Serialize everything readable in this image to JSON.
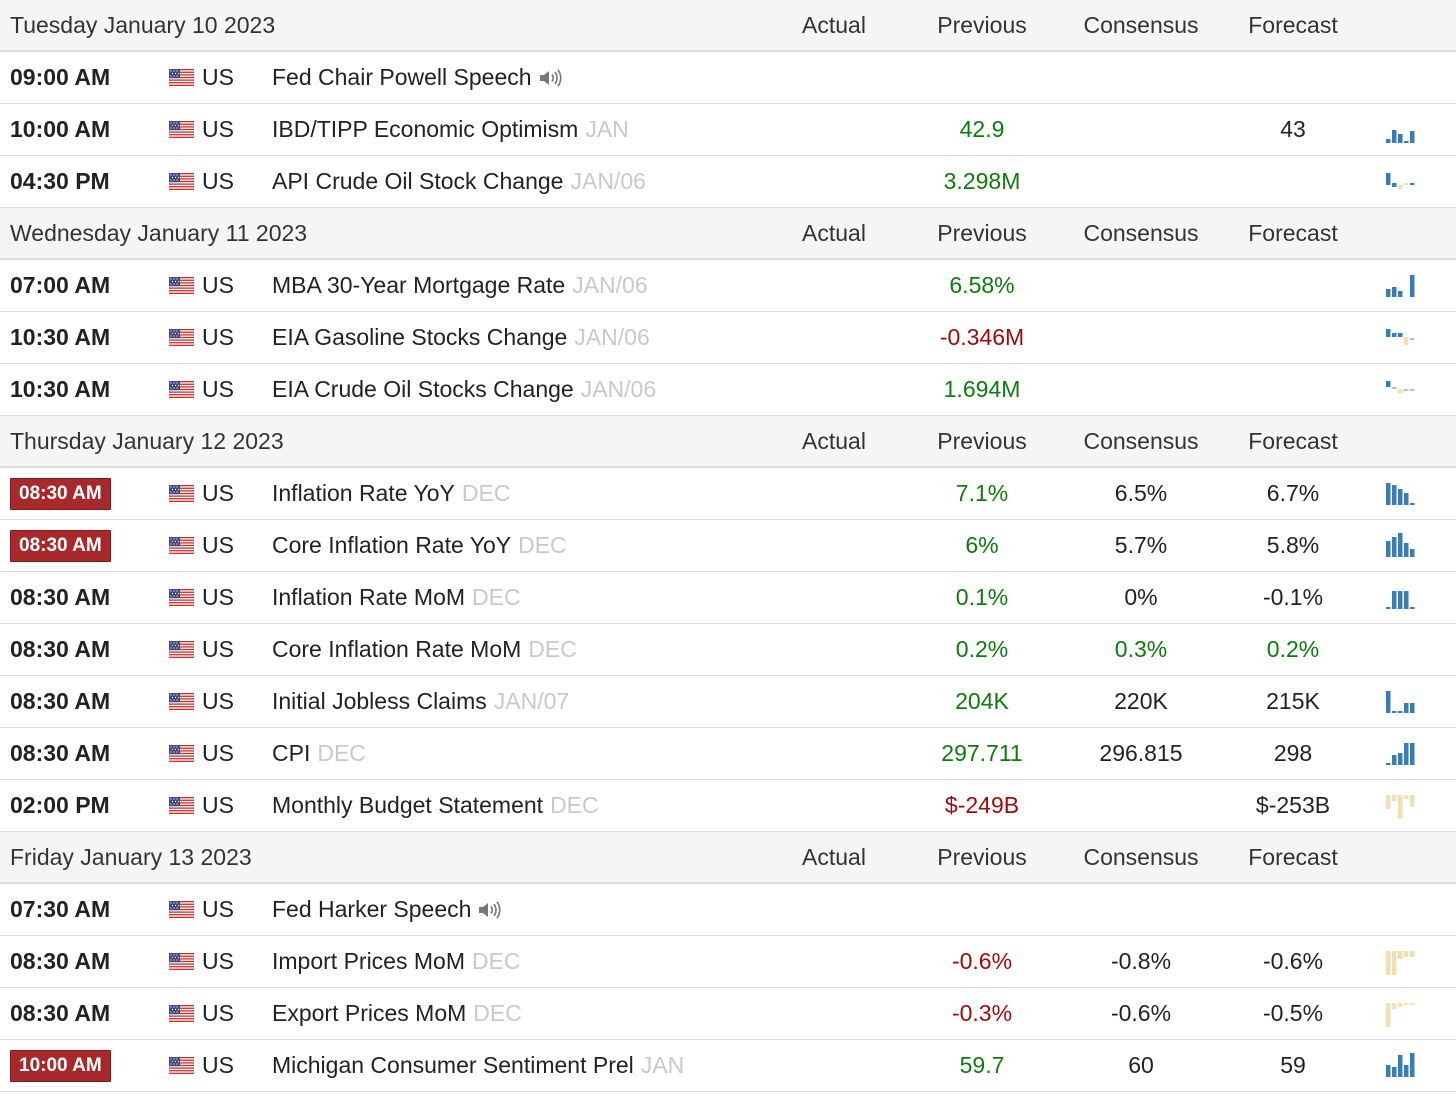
{
  "columns": {
    "actual": "Actual",
    "previous": "Previous",
    "consensus": "Consensus",
    "forecast": "Forecast"
  },
  "colors": {
    "positive": "#107a10",
    "negative": "#9e0a0a",
    "high_importance": "#a8292b",
    "spark_blue": "#3a7bb8",
    "spark_tan": "#f3dfb5"
  },
  "days": [
    {
      "date": "Tuesday January 10 2023",
      "events": [
        {
          "time": "09:00 AM",
          "important": false,
          "country": "US",
          "name": "Fed Chair Powell Speech",
          "period": "",
          "speaker_icon": true,
          "actual": "",
          "previous": "",
          "previous_tone": "green",
          "consensus": "",
          "consensus_tone": "black",
          "forecast": "",
          "forecast_tone": "black",
          "spark": ""
        },
        {
          "time": "10:00 AM",
          "important": false,
          "country": "US",
          "name": "IBD/TIPP Economic Optimism",
          "period": "JAN",
          "speaker_icon": false,
          "actual": "",
          "previous": "42.9",
          "previous_tone": "green",
          "consensus": "",
          "consensus_tone": "black",
          "forecast": "43",
          "forecast_tone": "black",
          "spark": "blue-a"
        },
        {
          "time": "04:30 PM",
          "important": false,
          "country": "US",
          "name": "API Crude Oil Stock Change",
          "period": "JAN/06",
          "speaker_icon": false,
          "actual": "",
          "previous": "3.298M",
          "previous_tone": "green",
          "consensus": "",
          "consensus_tone": "black",
          "forecast": "",
          "forecast_tone": "black",
          "spark": "mix-a"
        }
      ]
    },
    {
      "date": "Wednesday January 11 2023",
      "events": [
        {
          "time": "07:00 AM",
          "important": false,
          "country": "US",
          "name": "MBA 30-Year Mortgage Rate",
          "period": "JAN/06",
          "speaker_icon": false,
          "actual": "",
          "previous": "6.58%",
          "previous_tone": "green",
          "consensus": "",
          "consensus_tone": "black",
          "forecast": "",
          "forecast_tone": "black",
          "spark": "blue-b"
        },
        {
          "time": "10:30 AM",
          "important": false,
          "country": "US",
          "name": "EIA Gasoline Stocks Change",
          "period": "JAN/06",
          "speaker_icon": false,
          "actual": "",
          "previous": "-0.346M",
          "previous_tone": "red",
          "consensus": "",
          "consensus_tone": "black",
          "forecast": "",
          "forecast_tone": "black",
          "spark": "mix-b"
        },
        {
          "time": "10:30 AM",
          "important": false,
          "country": "US",
          "name": "EIA Crude Oil Stocks Change",
          "period": "JAN/06",
          "speaker_icon": false,
          "actual": "",
          "previous": "1.694M",
          "previous_tone": "green",
          "consensus": "",
          "consensus_tone": "black",
          "forecast": "",
          "forecast_tone": "black",
          "spark": "mix-c"
        }
      ]
    },
    {
      "date": "Thursday January 12 2023",
      "events": [
        {
          "time": "08:30 AM",
          "important": true,
          "country": "US",
          "name": "Inflation Rate YoY",
          "period": "DEC",
          "speaker_icon": false,
          "actual": "",
          "previous": "7.1%",
          "previous_tone": "green",
          "consensus": "6.5%",
          "consensus_tone": "black",
          "forecast": "6.7%",
          "forecast_tone": "black",
          "spark": "blue-c"
        },
        {
          "time": "08:30 AM",
          "important": true,
          "country": "US",
          "name": "Core Inflation Rate YoY",
          "period": "DEC",
          "speaker_icon": false,
          "actual": "",
          "previous": "6%",
          "previous_tone": "green",
          "consensus": "5.7%",
          "consensus_tone": "black",
          "forecast": "5.8%",
          "forecast_tone": "black",
          "spark": "blue-d"
        },
        {
          "time": "08:30 AM",
          "important": false,
          "country": "US",
          "name": "Inflation Rate MoM",
          "period": "DEC",
          "speaker_icon": false,
          "actual": "",
          "previous": "0.1%",
          "previous_tone": "green",
          "consensus": "0%",
          "consensus_tone": "black",
          "forecast": "-0.1%",
          "forecast_tone": "black",
          "spark": "blue-e"
        },
        {
          "time": "08:30 AM",
          "important": false,
          "country": "US",
          "name": "Core Inflation Rate MoM",
          "period": "DEC",
          "speaker_icon": false,
          "actual": "",
          "previous": "0.2%",
          "previous_tone": "green",
          "consensus": "0.3%",
          "consensus_tone": "green",
          "forecast": "0.2%",
          "forecast_tone": "green",
          "spark": ""
        },
        {
          "time": "08:30 AM",
          "important": false,
          "country": "US",
          "name": "Initial Jobless Claims",
          "period": "JAN/07",
          "speaker_icon": false,
          "actual": "",
          "previous": "204K",
          "previous_tone": "green",
          "consensus": "220K",
          "consensus_tone": "black",
          "forecast": "215K",
          "forecast_tone": "black",
          "spark": "blue-f"
        },
        {
          "time": "08:30 AM",
          "important": false,
          "country": "US",
          "name": "CPI",
          "period": "DEC",
          "speaker_icon": false,
          "actual": "",
          "previous": "297.711",
          "previous_tone": "green",
          "consensus": "296.815",
          "consensus_tone": "black",
          "forecast": "298",
          "forecast_tone": "black",
          "spark": "blue-g"
        },
        {
          "time": "02:00 PM",
          "important": false,
          "country": "US",
          "name": "Monthly Budget Statement",
          "period": "DEC",
          "speaker_icon": false,
          "actual": "",
          "previous": "$-249B",
          "previous_tone": "red",
          "consensus": "",
          "consensus_tone": "black",
          "forecast": "$-253B",
          "forecast_tone": "black",
          "spark": "tan-a"
        }
      ]
    },
    {
      "date": "Friday January 13 2023",
      "events": [
        {
          "time": "07:30 AM",
          "important": false,
          "country": "US",
          "name": "Fed Harker Speech",
          "period": "",
          "speaker_icon": true,
          "actual": "",
          "previous": "",
          "previous_tone": "green",
          "consensus": "",
          "consensus_tone": "black",
          "forecast": "",
          "forecast_tone": "black",
          "spark": ""
        },
        {
          "time": "08:30 AM",
          "important": false,
          "country": "US",
          "name": "Import Prices MoM",
          "period": "DEC",
          "speaker_icon": false,
          "actual": "",
          "previous": "-0.6%",
          "previous_tone": "red",
          "consensus": "-0.8%",
          "consensus_tone": "black",
          "forecast": "-0.6%",
          "forecast_tone": "black",
          "spark": "tan-b"
        },
        {
          "time": "08:30 AM",
          "important": false,
          "country": "US",
          "name": "Export Prices MoM",
          "period": "DEC",
          "speaker_icon": false,
          "actual": "",
          "previous": "-0.3%",
          "previous_tone": "red",
          "consensus": "-0.6%",
          "consensus_tone": "black",
          "forecast": "-0.5%",
          "forecast_tone": "black",
          "spark": "tan-c"
        },
        {
          "time": "10:00 AM",
          "important": true,
          "country": "US",
          "name": "Michigan Consumer Sentiment Prel",
          "period": "JAN",
          "speaker_icon": false,
          "actual": "",
          "previous": "59.7",
          "previous_tone": "green",
          "consensus": "60",
          "consensus_tone": "black",
          "forecast": "59",
          "forecast_tone": "black",
          "spark": "blue-h"
        }
      ]
    }
  ]
}
